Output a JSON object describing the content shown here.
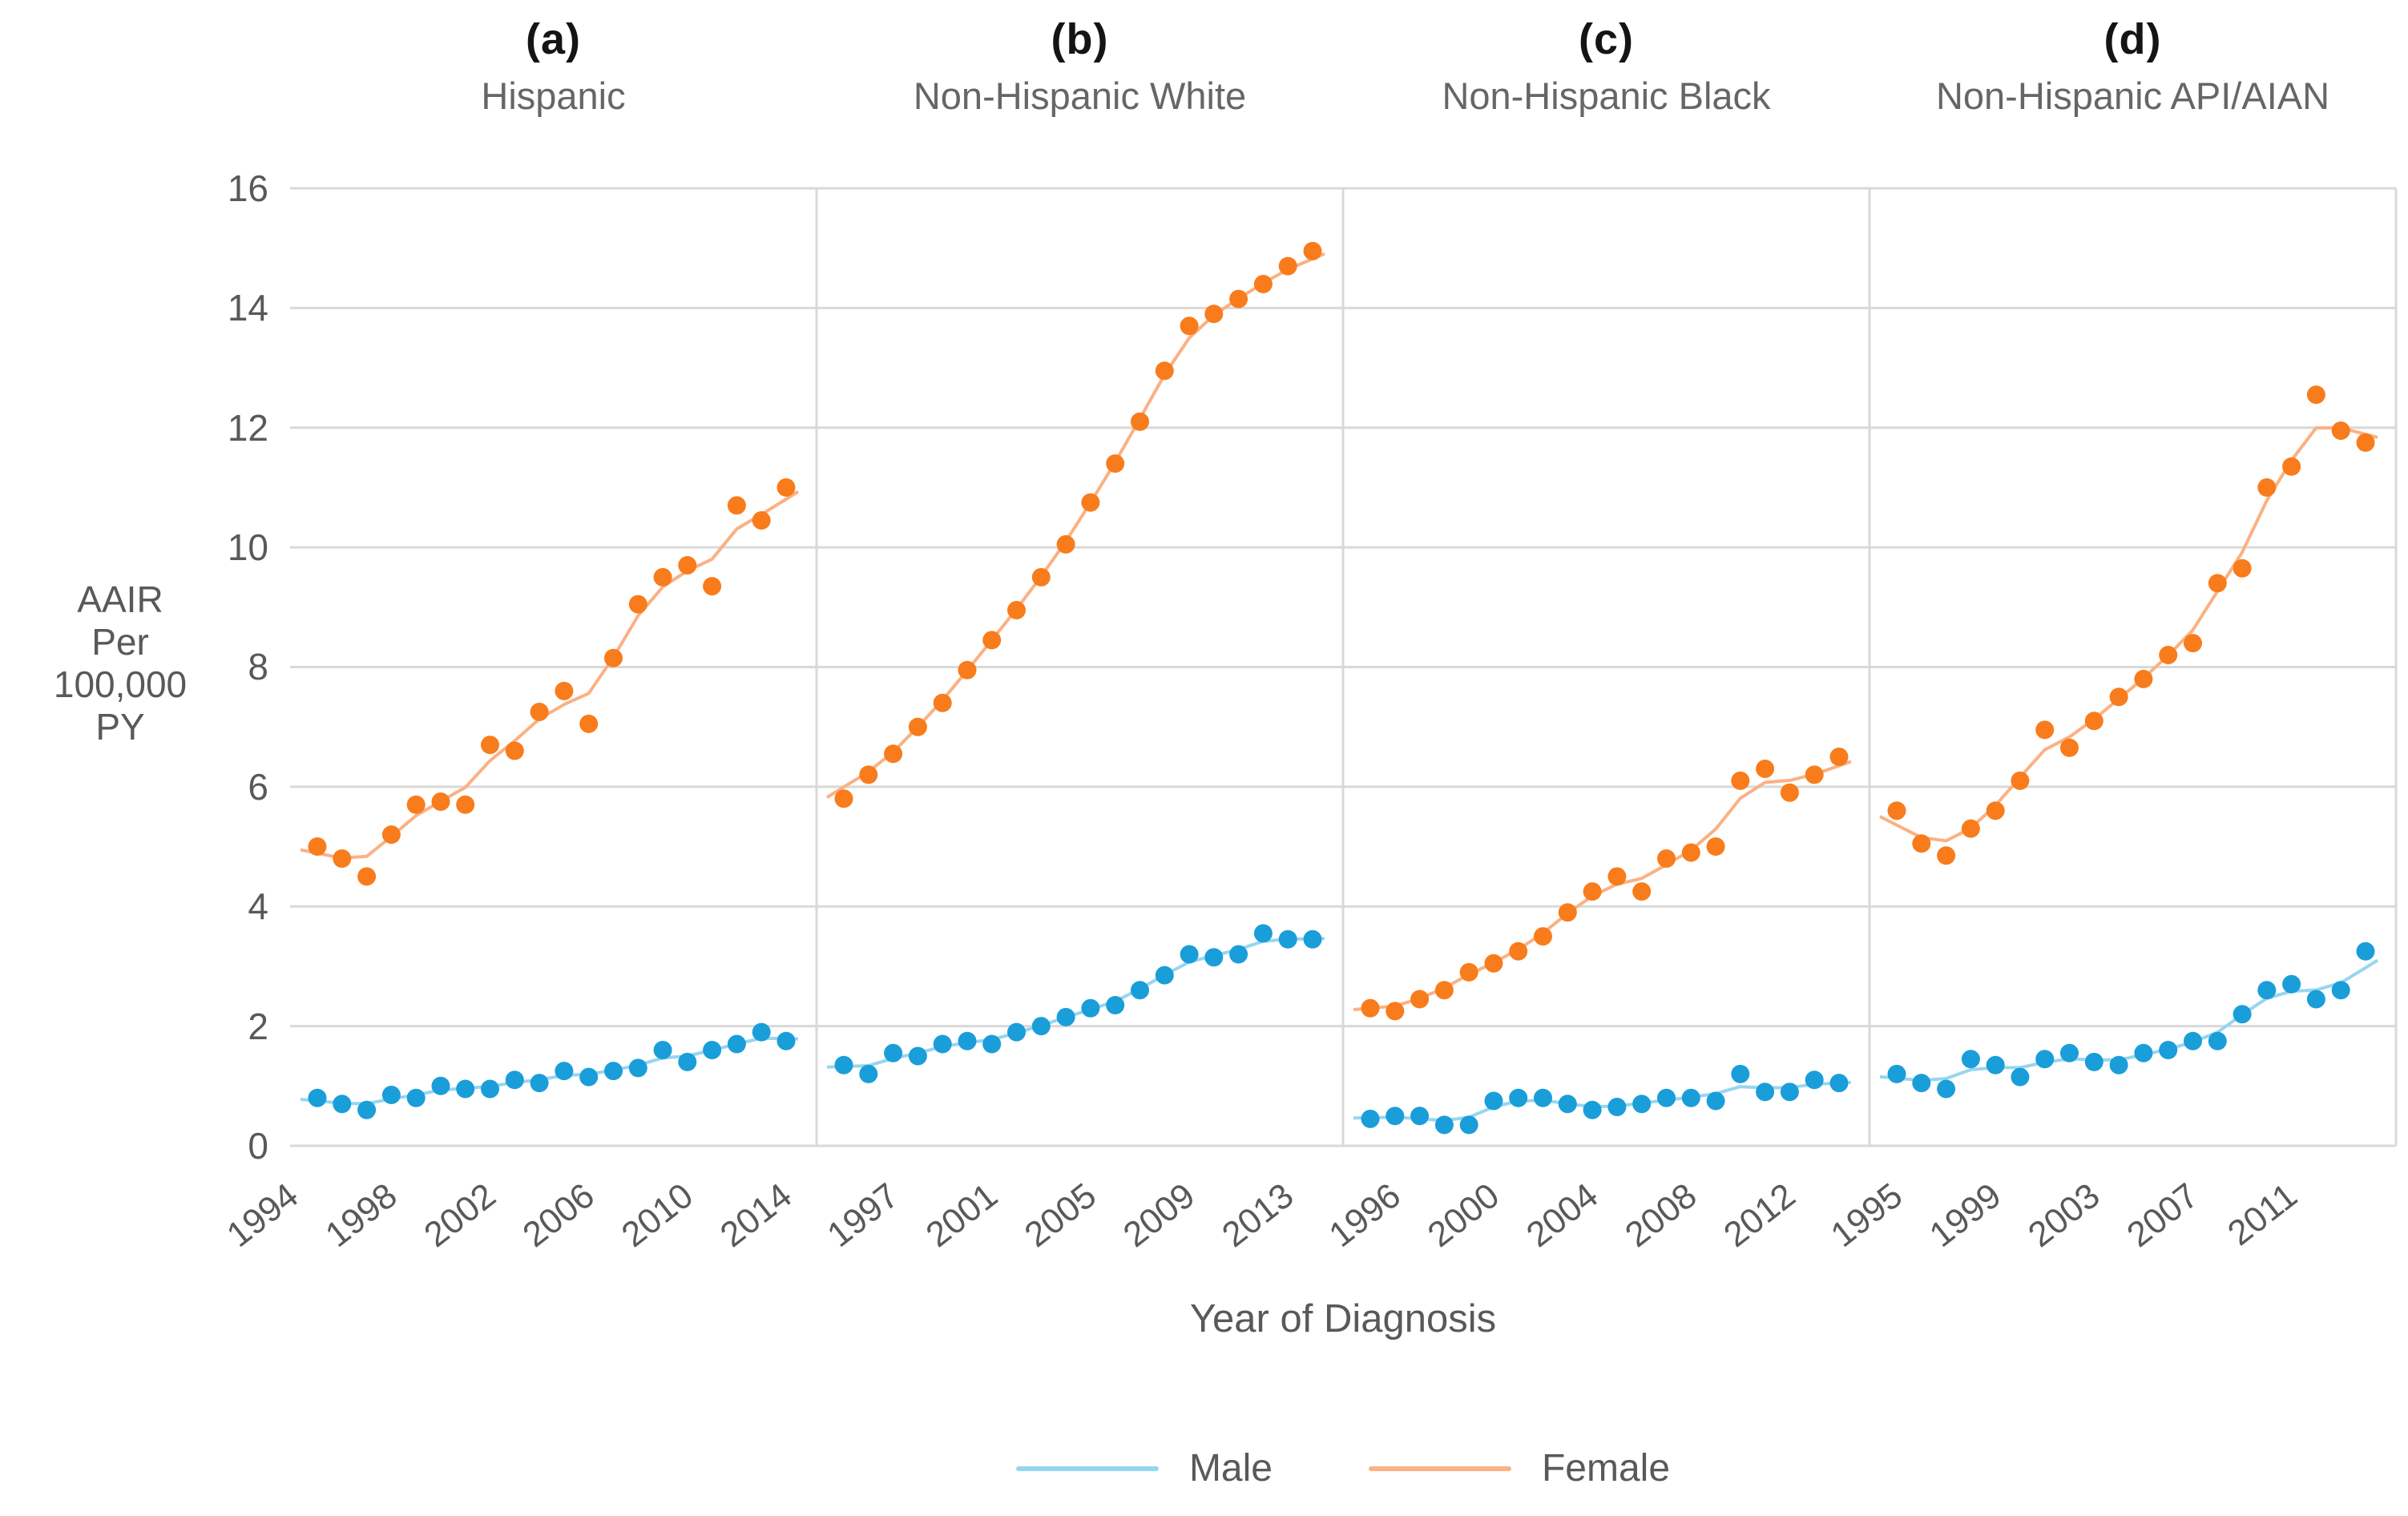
{
  "figure": {
    "y_axis": {
      "title_lines": [
        "AAIR",
        "Per",
        "100,000",
        "PY"
      ],
      "tick_labels": [
        "16",
        "14",
        "12",
        "10",
        "8",
        "6",
        "4",
        "2",
        "0"
      ]
    },
    "x_axis": {
      "title": "Year of Diagnosis"
    },
    "legend": [
      {
        "label": "Male",
        "series": "male"
      },
      {
        "label": "Female",
        "series": "female"
      }
    ]
  },
  "colors": {
    "male_point": "#1A9ED9",
    "male_trend": "#96D6F0",
    "female_point": "#F87C1C",
    "female_trend": "#FBB183",
    "gridline": "#D9D9D9",
    "axis_text": "#595959",
    "background": "#FFFFFF"
  },
  "chart_data": {
    "type": "scatter",
    "title": "",
    "xlabel": "Year of Diagnosis",
    "ylabel": "AAIR Per 100,000 PY",
    "ylim": [
      0,
      16
    ],
    "y_tick_step": 2,
    "grid": "horizontal",
    "legend_position": "bottom",
    "years": [
      1995,
      1996,
      1997,
      1998,
      1999,
      2000,
      2001,
      2002,
      2003,
      2004,
      2005,
      2006,
      2007,
      2008,
      2009,
      2010,
      2011,
      2012,
      2013,
      2014
    ],
    "panels": [
      {
        "letter": "a",
        "letter_label": "(a)",
        "title": "Hispanic",
        "tick_years": [
          1994,
          1998,
          2002,
          2006,
          2010,
          2014
        ],
        "series": {
          "female": [
            5.0,
            4.8,
            4.5,
            5.2,
            5.7,
            5.75,
            5.7,
            6.7,
            6.6,
            7.25,
            7.6,
            7.05,
            8.15,
            9.05,
            9.5,
            9.7,
            9.35,
            10.7,
            10.45,
            11.0
          ],
          "male": [
            0.8,
            0.7,
            0.6,
            0.85,
            0.8,
            1.0,
            0.95,
            0.95,
            1.1,
            1.05,
            1.25,
            1.15,
            1.25,
            1.3,
            1.6,
            1.4,
            1.6,
            1.7,
            1.9,
            1.75
          ]
        }
      },
      {
        "letter": "b",
        "letter_label": "(b)",
        "title": "Non-Hispanic White",
        "tick_years": [
          1997,
          2001,
          2005,
          2009,
          2013
        ],
        "series": {
          "female": [
            5.8,
            6.2,
            6.55,
            7.0,
            7.4,
            7.95,
            8.45,
            8.95,
            9.5,
            10.05,
            10.75,
            11.4,
            12.1,
            12.95,
            13.7,
            13.9,
            14.15,
            14.4,
            14.7,
            14.95
          ],
          "male": [
            1.35,
            1.2,
            1.55,
            1.5,
            1.7,
            1.75,
            1.7,
            1.9,
            2.0,
            2.15,
            2.3,
            2.35,
            2.6,
            2.85,
            3.2,
            3.15,
            3.2,
            3.55,
            3.45,
            3.45
          ]
        }
      },
      {
        "letter": "c",
        "letter_label": "(c)",
        "title": "Non-Hispanic Black",
        "tick_years": [
          1996,
          2000,
          2004,
          2008,
          2012
        ],
        "series": {
          "female": [
            2.3,
            2.25,
            2.45,
            2.6,
            2.9,
            3.05,
            3.25,
            3.5,
            3.9,
            4.25,
            4.5,
            4.25,
            4.8,
            4.9,
            5.0,
            6.1,
            6.3,
            5.9,
            6.2,
            6.5
          ],
          "male": [
            0.45,
            0.5,
            0.5,
            0.35,
            0.35,
            0.75,
            0.8,
            0.8,
            0.7,
            0.6,
            0.65,
            0.7,
            0.8,
            0.8,
            0.75,
            1.2,
            0.9,
            0.9,
            1.1,
            1.05
          ]
        }
      },
      {
        "letter": "d",
        "letter_label": "(d)",
        "title": "Non-Hispanic API/AIAN",
        "tick_years": [
          1995,
          1999,
          2003,
          2007,
          2011
        ],
        "series": {
          "female": [
            5.6,
            5.05,
            4.85,
            5.3,
            5.6,
            6.1,
            6.95,
            6.65,
            7.1,
            7.5,
            7.8,
            8.2,
            8.4,
            9.4,
            9.65,
            11.0,
            11.35,
            12.55,
            11.95,
            11.75
          ],
          "male": [
            1.2,
            1.05,
            0.95,
            1.45,
            1.35,
            1.15,
            1.45,
            1.55,
            1.4,
            1.35,
            1.55,
            1.6,
            1.75,
            1.75,
            2.2,
            2.6,
            2.7,
            2.45,
            2.6,
            3.25
          ]
        }
      }
    ]
  }
}
